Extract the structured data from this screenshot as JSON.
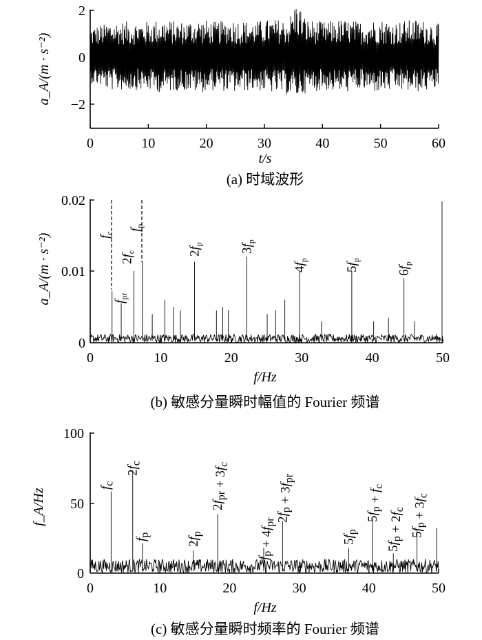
{
  "chart_data": [
    {
      "type": "line",
      "caption": "(a) 时域波形",
      "ylabel": "a_A/(m · s⁻²)",
      "xlabel": "t/s",
      "xlim": [
        0,
        60
      ],
      "ylim": [
        -3,
        2
      ],
      "xticks": [
        "0",
        "10",
        "20",
        "30",
        "40",
        "50",
        "60"
      ],
      "yticks": [
        "2",
        "0",
        "−2"
      ],
      "series": [
        {
          "x": [
            0,
            2.6,
            3.1,
            6.2,
            9.3,
            12.4,
            15.5,
            18.6,
            21.7,
            24.8,
            27.9,
            31.0,
            34.1,
            35.6,
            37.2,
            40.3,
            43.4,
            46.5,
            49.6,
            52.7,
            55.8,
            58.9,
            60
          ],
          "y_upper": [
            1.3,
            1.4,
            1.5,
            1.5,
            1.5,
            1.6,
            1.5,
            1.6,
            1.5,
            1.6,
            1.5,
            1.6,
            1.6,
            2.4,
            1.6,
            1.5,
            1.6,
            1.5,
            1.6,
            1.5,
            1.6,
            1.5,
            1.4
          ],
          "y_lower": [
            -1.1,
            -1.3,
            -1.4,
            -1.4,
            -1.4,
            -1.5,
            -1.4,
            -1.5,
            -1.4,
            -1.5,
            -1.4,
            -1.5,
            -1.6,
            -1.7,
            -1.5,
            -1.4,
            -1.5,
            -1.4,
            -1.5,
            -1.4,
            -1.5,
            -1.4,
            -1.3
          ]
        }
      ]
    },
    {
      "type": "line",
      "caption": "(b) 敏感分量瞬时幅值的 Fourier 频谱",
      "ylabel": "a_A/(m · s⁻²)",
      "xlabel": "f/Hz",
      "xlim": [
        0,
        50
      ],
      "ylim": [
        0,
        0.02
      ],
      "xticks": [
        "0",
        "10",
        "20",
        "30",
        "40",
        "50"
      ],
      "yticks": [
        "0.02",
        "0.01",
        "0"
      ],
      "peaks": [
        {
          "x": 3.1,
          "y": 0.0072,
          "label": "f_c"
        },
        {
          "x": 4.4,
          "y": 0.0055,
          "label": "f_pr"
        },
        {
          "x": 6.2,
          "y": 0.01,
          "label": "2f_c"
        },
        {
          "x": 7.4,
          "y": 0.0113,
          "label": "f_p"
        },
        {
          "x": 14.8,
          "y": 0.0113,
          "label": "2f_p"
        },
        {
          "x": 22.2,
          "y": 0.012,
          "label": "3f_p"
        },
        {
          "x": 29.7,
          "y": 0.01,
          "label": "4f_p"
        },
        {
          "x": 37.1,
          "y": 0.01,
          "label": "5f_p"
        },
        {
          "x": 44.5,
          "y": 0.009,
          "label": "6f_p"
        },
        {
          "x": 49.9,
          "y": 0.0197,
          "label": ""
        }
      ],
      "dashed_lines_at": [
        3.1,
        7.4
      ]
    },
    {
      "type": "line",
      "caption": "(c) 敏感分量瞬时频率的 Fourier 频谱",
      "ylabel": "f_A/Hz",
      "xlabel": "f/Hz",
      "xlim": [
        0,
        50
      ],
      "ylim": [
        0,
        100
      ],
      "xticks": [
        "0",
        "10",
        "20",
        "30",
        "40",
        "50"
      ],
      "yticks": [
        "100",
        "50",
        "0"
      ],
      "peaks": [
        {
          "x": 3.0,
          "y": 58,
          "label": "f_c"
        },
        {
          "x": 6.1,
          "y": 73,
          "label": "2f_c"
        },
        {
          "x": 7.5,
          "y": 21,
          "label": "f_p"
        },
        {
          "x": 14.8,
          "y": 16,
          "label": "2f_p"
        },
        {
          "x": 18.3,
          "y": 42,
          "label": "2f_pr + 3f_c"
        },
        {
          "x": 24.9,
          "y": 18,
          "label": "f_p + 4f_pr"
        },
        {
          "x": 27.6,
          "y": 37,
          "label": "2f_p + 3f_pr"
        },
        {
          "x": 37.1,
          "y": 18,
          "label": "5f_p"
        },
        {
          "x": 40.5,
          "y": 39,
          "label": "5f_p + f_c"
        },
        {
          "x": 43.5,
          "y": 14,
          "label": "5f_p + 2f_c"
        },
        {
          "x": 46.9,
          "y": 31,
          "label": "5f_p + 3f_c"
        },
        {
          "x": 49.7,
          "y": 32,
          "label": ""
        }
      ]
    }
  ]
}
